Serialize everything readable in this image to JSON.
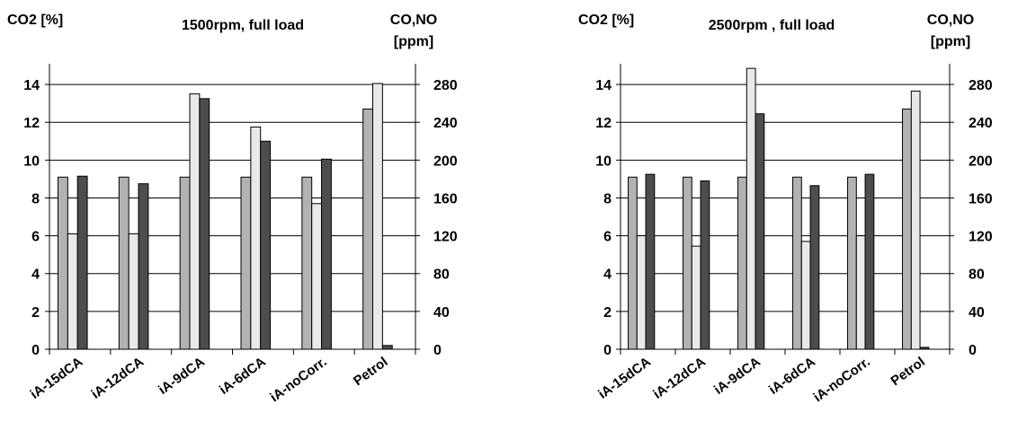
{
  "chart_data": [
    {
      "type": "bar",
      "title": "1500rpm, full load",
      "ylabel": "CO2 [%]",
      "y2label": [
        "CO,NO",
        "[ppm]"
      ],
      "ylim": [
        0,
        15
      ],
      "yticks": [
        0,
        2,
        4,
        6,
        8,
        10,
        12,
        14
      ],
      "y2lim": [
        0,
        300
      ],
      "y2ticks": [
        0,
        40,
        80,
        120,
        160,
        200,
        240,
        280
      ],
      "grid": "horizontal",
      "legend": "none",
      "categories": [
        "iA-15dCA",
        "iA-12dCA",
        "iA-9dCA",
        "iA-6dCA",
        "iA-noCorr.",
        "Petrol"
      ],
      "series": [
        {
          "axis": "left",
          "color": "#b2b2b2",
          "values": [
            9.1,
            9.1,
            9.1,
            9.1,
            9.1,
            12.7
          ]
        },
        {
          "axis": "right",
          "color": "#e9e9e9",
          "values": [
            122,
            122,
            270,
            235,
            154,
            281
          ]
        },
        {
          "axis": "right",
          "color": "#4d4d4d",
          "values": [
            183,
            175,
            265,
            220,
            201,
            4
          ]
        }
      ]
    },
    {
      "type": "bar",
      "title": "2500rpm , full load",
      "ylabel": "CO2 [%]",
      "y2label": [
        "CO,NO",
        "[ppm]"
      ],
      "ylim": [
        0,
        15
      ],
      "yticks": [
        0,
        2,
        4,
        6,
        8,
        10,
        12,
        14
      ],
      "y2lim": [
        0,
        300
      ],
      "y2ticks": [
        0,
        40,
        80,
        120,
        160,
        200,
        240,
        280
      ],
      "grid": "horizontal",
      "legend": "none",
      "categories": [
        "iA-15dCA",
        "iA-12dCA",
        "iA-9dCA",
        "iA-6dCA",
        "iA-noCorr.",
        "Petrol"
      ],
      "series": [
        {
          "axis": "left",
          "color": "#b2b2b2",
          "values": [
            9.1,
            9.1,
            9.1,
            9.1,
            9.1,
            12.7
          ]
        },
        {
          "axis": "right",
          "color": "#e9e9e9",
          "values": [
            120,
            109,
            297,
            114,
            120,
            273
          ]
        },
        {
          "axis": "right",
          "color": "#4d4d4d",
          "values": [
            185,
            178,
            249,
            173,
            185,
            2
          ]
        }
      ]
    }
  ]
}
